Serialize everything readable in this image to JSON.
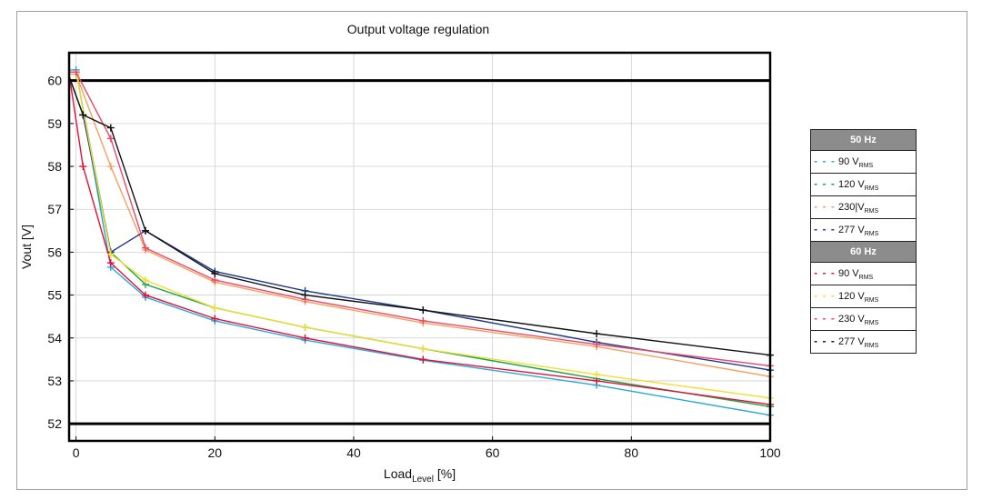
{
  "chart_data": {
    "type": "line",
    "title": "Output voltage regulation",
    "ylabel": "Vout [V]",
    "xlabel_main": "Load",
    "xlabel_sub": "Level",
    "xlabel_unit": " [%]",
    "xlim": [
      -1,
      100
    ],
    "ylim": [
      51.6,
      60.65
    ],
    "xticks": [
      0,
      20,
      40,
      60,
      80,
      100
    ],
    "yticks": [
      52,
      53,
      54,
      55,
      56,
      57,
      58,
      59,
      60
    ],
    "reference_lines": [
      60,
      52
    ],
    "series": [
      {
        "name": "90 V RMS 50 Hz",
        "color": "#29a8d8",
        "x": [
          -1,
          0,
          5,
          10,
          20,
          33,
          50,
          75,
          100
        ],
        "y": [
          60.25,
          60.25,
          55.65,
          54.95,
          54.4,
          53.95,
          53.48,
          52.9,
          52.2
        ]
      },
      {
        "name": "120 V RMS 50 Hz",
        "color": "#1aa34a",
        "x": [
          -1,
          0,
          5,
          10,
          20,
          33,
          50,
          75,
          100
        ],
        "y": [
          60.2,
          60.2,
          56.0,
          55.25,
          54.7,
          54.25,
          53.75,
          53.05,
          52.4
        ]
      },
      {
        "name": "230 V RMS 50 Hz",
        "color": "#f5a060",
        "x": [
          -1,
          0,
          5,
          10,
          20,
          33,
          50,
          75,
          100
        ],
        "y": [
          60.15,
          60.15,
          58.0,
          56.05,
          55.3,
          54.85,
          54.35,
          53.8,
          53.1
        ]
      },
      {
        "name": "277 V RMS 50 Hz",
        "color": "#1e3a8c",
        "x": [
          -1,
          1,
          5,
          10,
          20,
          33,
          50,
          75,
          100
        ],
        "y": [
          60.1,
          59.2,
          56.0,
          56.5,
          55.55,
          55.1,
          54.65,
          53.9,
          53.25
        ]
      },
      {
        "name": "90 V RMS 60 Hz",
        "color": "#e0103a",
        "x": [
          -1,
          1,
          5,
          10,
          20,
          33,
          50,
          75,
          100
        ],
        "y": [
          60.15,
          58.0,
          55.75,
          55.0,
          54.45,
          54.0,
          53.5,
          53.0,
          52.45
        ]
      },
      {
        "name": "120 V RMS 60 Hz",
        "color": "#f2de30",
        "x": [
          -1,
          0,
          5,
          10,
          20,
          33,
          50,
          75,
          100
        ],
        "y": [
          60.2,
          60.2,
          55.95,
          55.35,
          54.7,
          54.25,
          53.75,
          53.15,
          52.6
        ]
      },
      {
        "name": "230 V RMS 60 Hz",
        "color": "#e8486a",
        "x": [
          -1,
          0,
          5,
          10,
          20,
          33,
          50,
          75,
          100
        ],
        "y": [
          60.2,
          60.2,
          58.65,
          56.1,
          55.35,
          54.9,
          54.4,
          53.85,
          53.35
        ]
      },
      {
        "name": "277 V RMS 60 Hz",
        "color": "#111111",
        "x": [
          -1,
          1,
          5,
          10,
          20,
          33,
          50,
          75,
          100
        ],
        "y": [
          60.1,
          59.2,
          58.9,
          56.5,
          55.5,
          55.0,
          54.65,
          54.1,
          53.6
        ]
      }
    ],
    "legend": {
      "placement": "right",
      "groups": [
        {
          "header": "50 Hz",
          "items": [
            {
              "volt": "90 V",
              "sub": "RMS",
              "color": "#29a8d8"
            },
            {
              "volt": "120 V",
              "sub": "RMS",
              "color": "#1aa34a"
            },
            {
              "volt": "230|V",
              "sub": "RMS",
              "color": "#f5a060"
            },
            {
              "volt": "277 V",
              "sub": "RMS",
              "color": "#1e3a8c"
            }
          ]
        },
        {
          "header": "60 Hz",
          "items": [
            {
              "volt": "90 V",
              "sub": "RMS",
              "color": "#e0103a"
            },
            {
              "volt": "120 V",
              "sub": "RMS",
              "color": "#f2de30"
            },
            {
              "volt": "230 V",
              "sub": "RMS",
              "color": "#e8486a"
            },
            {
              "volt": "277 V",
              "sub": "RMS",
              "color": "#111111"
            }
          ]
        }
      ]
    }
  }
}
